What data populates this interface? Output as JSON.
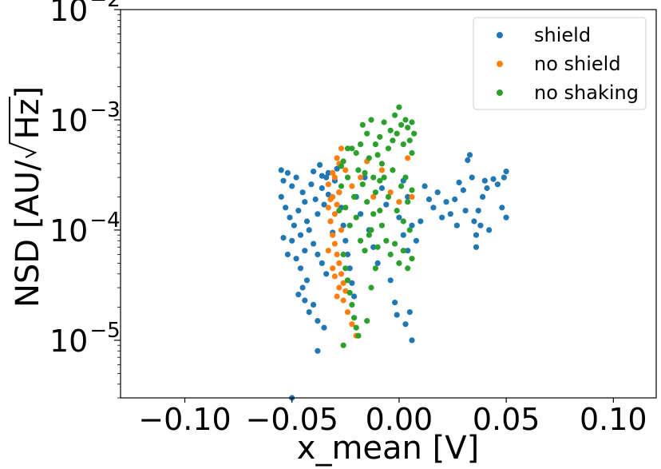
{
  "chart_data": {
    "type": "scatter",
    "title": "",
    "xlabel": "x_mean [V]",
    "ylabel": "NSD [AU/√Hz]",
    "ylabel_parts": {
      "prefix": "NSD [AU/",
      "radicand": "Hz",
      "suffix": "]"
    },
    "xlim": [
      -0.13,
      0.12
    ],
    "ylim": [
      3e-06,
      0.01
    ],
    "yscale": "log",
    "grid": false,
    "legend_position": "top-right",
    "x_ticks": [
      {
        "value": -0.1,
        "label": "−0.10"
      },
      {
        "value": -0.05,
        "label": "−0.05"
      },
      {
        "value": 0.0,
        "label": "0.00"
      },
      {
        "value": 0.05,
        "label": "0.05"
      },
      {
        "value": 0.1,
        "label": "0.10"
      }
    ],
    "y_ticks": [
      {
        "value": 0.01,
        "base": "10",
        "exponent": "−2"
      },
      {
        "value": 0.001,
        "base": "10",
        "exponent": "−3"
      },
      {
        "value": 0.0001,
        "base": "10",
        "exponent": "−4"
      },
      {
        "value": 1e-05,
        "base": "10",
        "exponent": "−5"
      }
    ],
    "series": [
      {
        "name": "shield",
        "color": "#1f77b4",
        "points": [
          [
            -0.054,
            0.00028
          ],
          [
            -0.052,
            0.00033
          ],
          [
            -0.05,
            0.00025
          ],
          [
            -0.048,
            0.0003
          ],
          [
            -0.055,
            0.0002
          ],
          [
            -0.053,
            0.00016
          ],
          [
            -0.051,
            0.00013
          ],
          [
            -0.049,
            0.00011
          ],
          [
            -0.047,
            0.00015
          ],
          [
            -0.045,
            0.00022
          ],
          [
            -0.044,
            0.00018
          ],
          [
            -0.043,
            0.00012
          ],
          [
            -0.046,
            9e-05
          ],
          [
            -0.05,
            8e-05
          ],
          [
            -0.054,
            8.5e-05
          ],
          [
            -0.052,
            6e-05
          ],
          [
            -0.048,
            5.5e-05
          ],
          [
            -0.046,
            4.5e-05
          ],
          [
            -0.044,
            6.5e-05
          ],
          [
            -0.042,
            0.0001
          ],
          [
            -0.041,
            0.00026
          ],
          [
            -0.04,
            0.00034
          ],
          [
            -0.039,
            0.00019
          ],
          [
            -0.038,
            0.00014
          ],
          [
            -0.037,
            0.00039
          ],
          [
            -0.036,
            0.00024
          ],
          [
            -0.035,
            0.00017
          ],
          [
            -0.034,
            0.0003
          ],
          [
            -0.033,
            0.00021
          ],
          [
            -0.032,
            0.00012
          ],
          [
            -0.031,
            9.5e-05
          ],
          [
            -0.04,
            7.5e-05
          ],
          [
            -0.038,
            6e-05
          ],
          [
            -0.036,
            5e-05
          ],
          [
            -0.034,
            4e-05
          ],
          [
            -0.043,
            3.5e-05
          ],
          [
            -0.045,
            3e-05
          ],
          [
            -0.047,
            2.6e-05
          ],
          [
            -0.044,
            2.3e-05
          ],
          [
            -0.04,
            2.1e-05
          ],
          [
            -0.042,
            1.8e-05
          ],
          [
            -0.038,
            1.5e-05
          ],
          [
            -0.035,
            1.3e-05
          ],
          [
            -0.038,
            8e-06
          ],
          [
            -0.05,
            3e-06
          ],
          [
            -0.03,
            0.00028
          ],
          [
            -0.029,
            0.00036
          ],
          [
            -0.028,
            0.00022
          ],
          [
            -0.027,
            0.00016
          ],
          [
            -0.026,
            0.00011
          ],
          [
            -0.025,
            8e-05
          ],
          [
            -0.024,
            6e-05
          ],
          [
            -0.023,
            4.5e-05
          ],
          [
            -0.022,
            3.3e-05
          ],
          [
            -0.021,
            2.5e-05
          ],
          [
            -0.02,
            0.0002
          ],
          [
            -0.018,
            0.00014
          ],
          [
            -0.016,
            0.0003
          ],
          [
            -0.014,
            0.0001
          ],
          [
            -0.012,
            7e-05
          ],
          [
            -0.01,
            5e-05
          ],
          [
            -0.008,
            0.00024
          ],
          [
            -0.006,
            0.00017
          ],
          [
            -0.004,
            3.5e-05
          ],
          [
            -0.002,
            2.2e-05
          ],
          [
            0.0,
            0.00013
          ],
          [
            0.002,
            9e-05
          ],
          [
            0.004,
            6.5e-05
          ],
          [
            0.005,
            1.8e-05
          ],
          [
            0.006,
            1e-05
          ],
          [
            0.003,
            1.4e-05
          ],
          [
            -0.001,
            1.7e-05
          ],
          [
            0.002,
            0.00028
          ],
          [
            0.004,
            0.0002
          ],
          [
            0.006,
            0.00011
          ],
          [
            0.008,
            8e-05
          ],
          [
            0.01,
            0.00012
          ],
          [
            0.012,
            0.00025
          ],
          [
            0.014,
            0.00019
          ],
          [
            0.016,
            0.00016
          ],
          [
            0.018,
            0.00022
          ],
          [
            0.02,
            0.00013
          ],
          [
            0.022,
            0.00018
          ],
          [
            0.024,
            0.00014
          ],
          [
            0.026,
            0.00019
          ],
          [
            0.027,
            0.00011
          ],
          [
            0.028,
            0.00027
          ],
          [
            0.03,
            0.00023
          ],
          [
            0.031,
            0.00015
          ],
          [
            0.032,
            0.00043
          ],
          [
            0.033,
            0.00048
          ],
          [
            0.034,
            0.0003
          ],
          [
            0.035,
            0.00012
          ],
          [
            0.036,
            9e-05
          ],
          [
            0.037,
            0.00015
          ],
          [
            0.038,
            0.00011
          ],
          [
            0.039,
            0.0002
          ],
          [
            0.04,
            0.00028
          ],
          [
            0.041,
            0.00024
          ],
          [
            0.042,
            0.0001
          ],
          [
            0.044,
            0.00029
          ],
          [
            0.046,
            0.00026
          ],
          [
            0.048,
            0.00016
          ],
          [
            0.049,
            0.0003
          ],
          [
            0.05,
            0.00034
          ],
          [
            0.05,
            0.00013
          ],
          [
            0.036,
            7e-05
          ],
          [
            -0.033,
            0.00033
          ],
          [
            -0.036,
            0.00031
          ],
          [
            -0.055,
            0.00035
          ]
        ]
      },
      {
        "name": "no shield",
        "color": "#ff7f0e",
        "points": [
          [
            -0.033,
            0.00026
          ],
          [
            -0.032,
            0.00019
          ],
          [
            -0.031,
            0.00033
          ],
          [
            -0.03,
            0.00014
          ],
          [
            -0.029,
            0.00045
          ],
          [
            -0.028,
            0.00022
          ],
          [
            -0.027,
            0.0001
          ],
          [
            -0.032,
            0.00012
          ],
          [
            -0.031,
            9e-05
          ],
          [
            -0.03,
            7.5e-05
          ],
          [
            -0.029,
            6e-05
          ],
          [
            -0.028,
            5e-05
          ],
          [
            -0.027,
            4e-05
          ],
          [
            -0.026,
            3.3e-05
          ],
          [
            -0.025,
            2.8e-05
          ],
          [
            -0.028,
            3e-05
          ],
          [
            -0.026,
            2.3e-05
          ],
          [
            -0.024,
            1.8e-05
          ],
          [
            -0.022,
            1.4e-05
          ],
          [
            -0.02,
            1.1e-05
          ],
          [
            -0.033,
            0.00016
          ],
          [
            -0.031,
            0.0002
          ],
          [
            -0.029,
            0.00017
          ],
          [
            -0.03,
            0.0003
          ],
          [
            -0.028,
            0.0004
          ],
          [
            -0.027,
            0.00055
          ],
          [
            -0.025,
            0.00035
          ],
          [
            -0.022,
            0.00025
          ],
          [
            -0.018,
            0.0003
          ],
          [
            -0.015,
            0.00042
          ],
          [
            -0.012,
            0.0002
          ],
          [
            -0.008,
            0.00035
          ],
          [
            -0.004,
            0.00022
          ],
          [
            0.0,
            0.00018
          ],
          [
            0.004,
            0.00045
          ],
          [
            0.006,
            0.0002
          ],
          [
            -0.033,
            6.5e-05
          ],
          [
            -0.031,
            4.5e-05
          ],
          [
            -0.03,
            3.8e-05
          ],
          [
            -0.029,
            2.5e-05
          ]
        ]
      },
      {
        "name": "no shaking",
        "color": "#2ca02c",
        "points": [
          [
            -0.027,
            0.00025
          ],
          [
            -0.026,
            0.00042
          ],
          [
            -0.025,
            0.00016
          ],
          [
            -0.024,
            0.0003
          ],
          [
            -0.023,
            0.00011
          ],
          [
            -0.022,
            0.00055
          ],
          [
            -0.021,
            0.0002
          ],
          [
            -0.02,
            0.00013
          ],
          [
            -0.019,
            0.00035
          ],
          [
            -0.018,
            8e-05
          ],
          [
            -0.017,
            0.00026
          ],
          [
            -0.016,
            6.5e-05
          ],
          [
            -0.015,
            0.00018
          ],
          [
            -0.014,
            0.00045
          ],
          [
            -0.013,
            0.0001
          ],
          [
            -0.012,
            0.0003
          ],
          [
            -0.011,
            0.00022
          ],
          [
            -0.01,
            7e-05
          ],
          [
            -0.009,
            0.00015
          ],
          [
            -0.008,
            0.0004
          ],
          [
            -0.026,
            6e-05
          ],
          [
            -0.025,
            4.5e-05
          ],
          [
            -0.024,
            3.5e-05
          ],
          [
            -0.023,
            2.7e-05
          ],
          [
            -0.022,
            2.1e-05
          ],
          [
            -0.021,
            1.6e-05
          ],
          [
            -0.02,
            1.3e-05
          ],
          [
            -0.019,
            1.1e-05
          ],
          [
            -0.026,
            9e-06
          ],
          [
            -0.015,
            1.5e-05
          ],
          [
            -0.013,
            3e-05
          ],
          [
            -0.011,
            4.5e-05
          ],
          [
            -0.017,
            0.0009
          ],
          [
            -0.015,
            0.00075
          ],
          [
            -0.013,
            0.001
          ],
          [
            -0.011,
            0.0006
          ],
          [
            -0.009,
            0.0007
          ],
          [
            -0.007,
            0.00095
          ],
          [
            -0.005,
            0.00055
          ],
          [
            -0.004,
            0.0008
          ],
          [
            -0.003,
            0.00065
          ],
          [
            -0.002,
            0.0011
          ],
          [
            -0.001,
            0.00075
          ],
          [
            0.0,
            0.0013
          ],
          [
            0.001,
            0.0009
          ],
          [
            0.002,
            0.0006
          ],
          [
            0.003,
            0.001
          ],
          [
            0.004,
            0.00085
          ],
          [
            0.005,
            0.00065
          ],
          [
            0.006,
            0.0005
          ],
          [
            -0.007,
            0.0003
          ],
          [
            -0.005,
            0.0002
          ],
          [
            -0.003,
            0.00035
          ],
          [
            -0.001,
            0.00015
          ],
          [
            0.001,
            0.00025
          ],
          [
            0.002,
            0.00012
          ],
          [
            0.003,
            0.0003
          ],
          [
            0.004,
            0.00018
          ],
          [
            0.005,
            0.0001
          ],
          [
            0.006,
            0.00023
          ],
          [
            -0.006,
            8e-05
          ],
          [
            -0.004,
            6e-05
          ],
          [
            -0.002,
            7.5e-05
          ],
          [
            0.0,
            5e-05
          ],
          [
            0.002,
            6.5e-05
          ],
          [
            0.004,
            4.5e-05
          ],
          [
            0.006,
            5.5e-05
          ],
          [
            -0.02,
            0.0005
          ],
          [
            -0.018,
            0.0006
          ],
          [
            -0.024,
            0.00055
          ],
          [
            -0.027,
            0.00038
          ],
          [
            -0.028,
            0.00015
          ],
          [
            -0.016,
            0.00033
          ],
          [
            -0.01,
            0.00048
          ],
          [
            -0.009,
            0.00028
          ],
          [
            0.007,
            0.00075
          ],
          [
            0.006,
            0.00095
          ],
          [
            -0.012,
            0.00014
          ],
          [
            -0.014,
            9e-05
          ],
          [
            -0.008,
            0.00011
          ]
        ]
      }
    ]
  }
}
